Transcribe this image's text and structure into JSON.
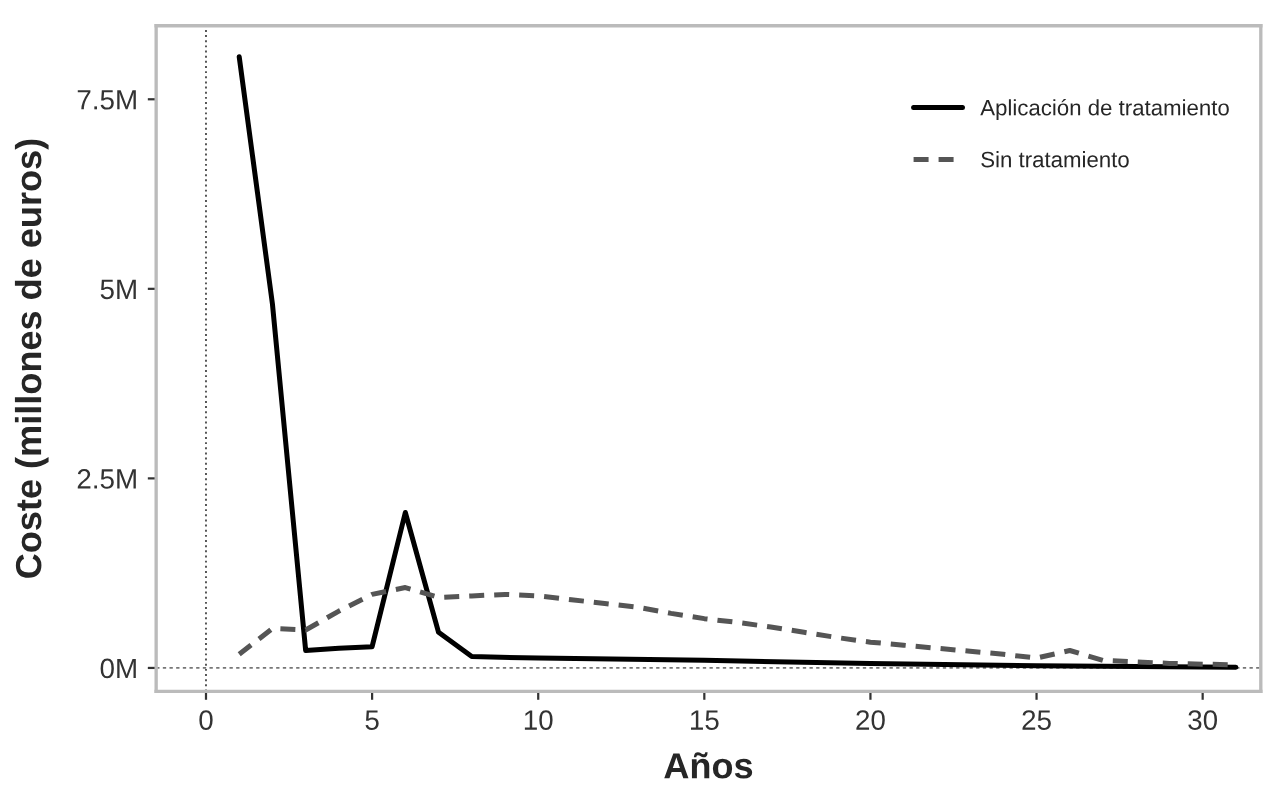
{
  "chart_data": {
    "type": "line",
    "xlabel": "Años",
    "ylabel": "Coste (millones de euros)",
    "xlim": [
      -1.5,
      31.75
    ],
    "xticks": [
      0,
      5,
      10,
      15,
      20,
      25,
      30
    ],
    "ylim": [
      -0.31,
      8.47
    ],
    "yticks": [
      {
        "value": 0,
        "label": "0M"
      },
      {
        "value": 2.5,
        "label": "2.5M"
      },
      {
        "value": 5,
        "label": "5M"
      },
      {
        "value": 7.5,
        "label": "7.5M"
      }
    ],
    "grid": false,
    "legend": "top right",
    "marker": "none",
    "ref_lines": [
      {
        "axis": "x",
        "value": 0,
        "line_style": "dotted",
        "color": "#555555"
      },
      {
        "axis": "y",
        "value": 0,
        "line_style": "dashed",
        "color": "#777777"
      }
    ],
    "series": [
      {
        "name": "Aplicación de tratamiento",
        "color": "#000000",
        "line_style": "solid",
        "x": [
          1,
          2,
          3,
          4,
          5,
          6,
          7,
          8,
          10,
          15,
          20,
          25,
          31
        ],
        "values": [
          8.06,
          4.8,
          0.23,
          0.26,
          0.28,
          2.05,
          0.47,
          0.15,
          0.13,
          0.1,
          0.06,
          0.03,
          0.01
        ]
      },
      {
        "name": "Sin tratamiento",
        "color": "#555555",
        "line_style": "dashed",
        "x": [
          1,
          2,
          3,
          4,
          5,
          6,
          7,
          8,
          9,
          10,
          11,
          12,
          13,
          14,
          15,
          16,
          17,
          18,
          19,
          20,
          21,
          22,
          23,
          24,
          25,
          26,
          27,
          28,
          29,
          30,
          31
        ],
        "values": [
          0.18,
          0.52,
          0.5,
          0.75,
          0.97,
          1.06,
          0.93,
          0.95,
          0.97,
          0.95,
          0.9,
          0.85,
          0.8,
          0.72,
          0.65,
          0.6,
          0.54,
          0.47,
          0.4,
          0.34,
          0.3,
          0.26,
          0.22,
          0.18,
          0.13,
          0.23,
          0.1,
          0.08,
          0.06,
          0.05,
          0.04
        ]
      }
    ]
  }
}
